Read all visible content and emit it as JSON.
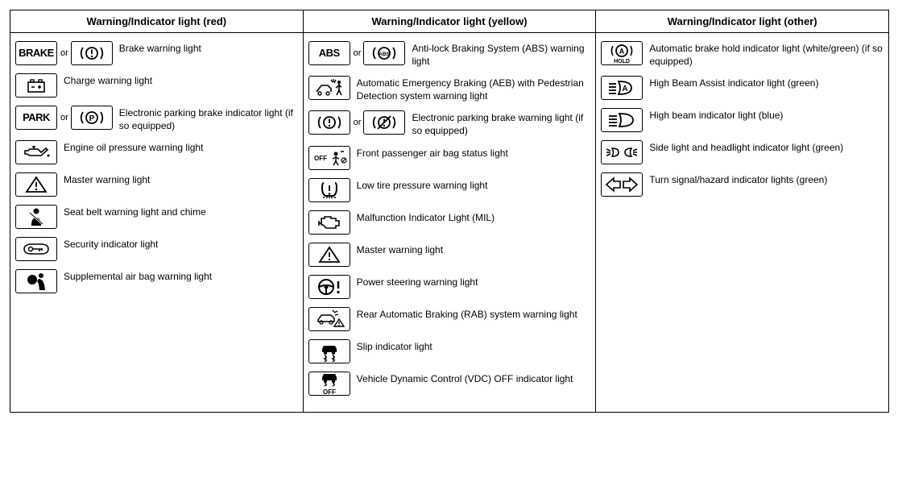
{
  "or_label": "or",
  "columns": [
    {
      "header": "Warning/Indicator light (red)",
      "rows": [
        {
          "icons": [
            "brake-text",
            "brake-circle"
          ],
          "or": true,
          "label": "Brake warning light"
        },
        {
          "icons": [
            "battery"
          ],
          "label": "Charge warning light"
        },
        {
          "icons": [
            "park-text",
            "park-circle"
          ],
          "or": true,
          "label": "Electronic parking brake indicator light (if so equipped)"
        },
        {
          "icons": [
            "oil-can"
          ],
          "label": "Engine oil pressure warning light"
        },
        {
          "icons": [
            "triangle-excl"
          ],
          "label": "Master warning light"
        },
        {
          "icons": [
            "seatbelt"
          ],
          "label": "Seat belt warning light and chime"
        },
        {
          "icons": [
            "car-key"
          ],
          "label": "Security indicator light"
        },
        {
          "icons": [
            "airbag"
          ],
          "label": "Supplemental air bag warning light"
        }
      ]
    },
    {
      "header": "Warning/Indicator light (yellow)",
      "rows": [
        {
          "icons": [
            "abs-text",
            "abs-circle"
          ],
          "or": true,
          "label": "Anti-lock Braking System (ABS) warning light"
        },
        {
          "icons": [
            "aeb-ped"
          ],
          "label": "Automatic Emergency Braking (AEB) with Pedestrian Detection system warning light"
        },
        {
          "icons": [
            "brake-circle",
            "brake-circle-slash"
          ],
          "or": true,
          "label": "Electronic parking brake warning light (if so equipped)"
        },
        {
          "icons": [
            "off-pass"
          ],
          "label": "Front passenger air bag status light"
        },
        {
          "icons": [
            "tire-excl"
          ],
          "label": "Low tire pressure warning light"
        },
        {
          "icons": [
            "engine"
          ],
          "label": "Malfunction Indicator Light (MIL)"
        },
        {
          "icons": [
            "triangle-excl"
          ],
          "label": "Master warning light"
        },
        {
          "icons": [
            "steering-excl"
          ],
          "label": "Power steering warning light"
        },
        {
          "icons": [
            "rab"
          ],
          "label": "Rear Automatic Braking (RAB) system warning light"
        },
        {
          "icons": [
            "slip"
          ],
          "label": "Slip indicator light"
        },
        {
          "icons": [
            "vdc-off"
          ],
          "label": "Vehicle Dynamic Control (VDC) OFF indicator light"
        }
      ]
    },
    {
      "header": "Warning/Indicator light (other)",
      "rows": [
        {
          "icons": [
            "a-hold"
          ],
          "label": "Automatic brake hold indicator light (white/green) (if so equipped)"
        },
        {
          "icons": [
            "hba"
          ],
          "label": "High Beam Assist indicator light (green)"
        },
        {
          "icons": [
            "high-beam"
          ],
          "label": "High beam indicator light (blue)"
        },
        {
          "icons": [
            "side-light"
          ],
          "label": "Side light and headlight indicator light (green)"
        },
        {
          "icons": [
            "turn-signals"
          ],
          "label": "Turn signal/hazard indicator lights (green)"
        }
      ]
    }
  ]
}
